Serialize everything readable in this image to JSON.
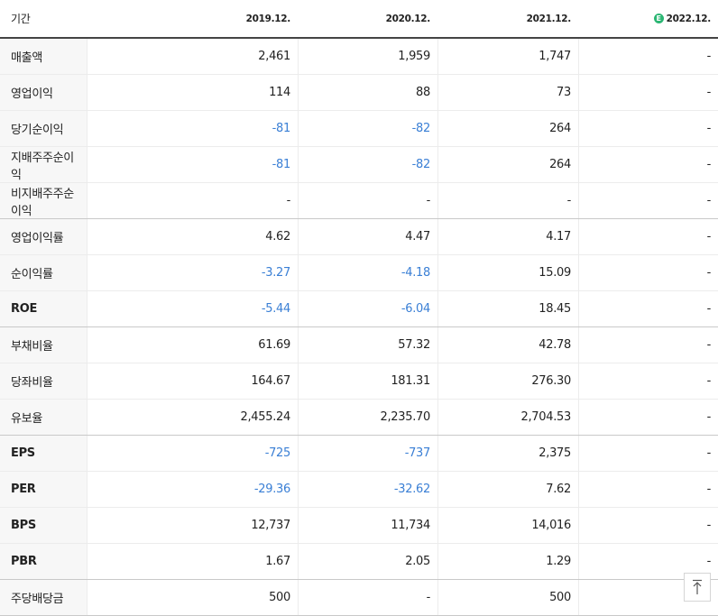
{
  "table": {
    "header": {
      "label": "기간",
      "columns": [
        "2019.12.",
        "2020.12.",
        "2021.12.",
        "2022.12."
      ],
      "estimate_badge": "E"
    },
    "negative_color": "#3a7fd5",
    "groups": [
      {
        "rows": [
          {
            "label": "매출액",
            "cells": [
              "2,461",
              "1,959",
              "1,747",
              "-"
            ]
          },
          {
            "label": "영업이익",
            "cells": [
              "114",
              "88",
              "73",
              "-"
            ]
          },
          {
            "label": "당기순이익",
            "cells": [
              "-81",
              "-82",
              "264",
              "-"
            ]
          },
          {
            "label": "지배주주순이익",
            "cells": [
              "-81",
              "-82",
              "264",
              "-"
            ]
          },
          {
            "label": "비지배주주순이익",
            "cells": [
              "-",
              "-",
              "-",
              "-"
            ]
          }
        ]
      },
      {
        "rows": [
          {
            "label": "영업이익률",
            "cells": [
              "4.62",
              "4.47",
              "4.17",
              "-"
            ]
          },
          {
            "label": "순이익률",
            "cells": [
              "-3.27",
              "-4.18",
              "15.09",
              "-"
            ]
          },
          {
            "label": "ROE",
            "cells": [
              "-5.44",
              "-6.04",
              "18.45",
              "-"
            ]
          }
        ]
      },
      {
        "rows": [
          {
            "label": "부채비율",
            "cells": [
              "61.69",
              "57.32",
              "42.78",
              "-"
            ]
          },
          {
            "label": "당좌비율",
            "cells": [
              "164.67",
              "181.31",
              "276.30",
              "-"
            ]
          },
          {
            "label": "유보율",
            "cells": [
              "2,455.24",
              "2,235.70",
              "2,704.53",
              "-"
            ]
          }
        ]
      },
      {
        "rows": [
          {
            "label": "EPS",
            "cells": [
              "-725",
              "-737",
              "2,375",
              "-"
            ]
          },
          {
            "label": "PER",
            "cells": [
              "-29.36",
              "-32.62",
              "7.62",
              "-"
            ]
          },
          {
            "label": "BPS",
            "cells": [
              "12,737",
              "11,734",
              "14,016",
              "-"
            ]
          },
          {
            "label": "PBR",
            "cells": [
              "1.67",
              "2.05",
              "1.29",
              "-"
            ]
          }
        ]
      },
      {
        "rows": [
          {
            "label": "주당배당금",
            "cells": [
              "500",
              "-",
              "500",
              "-"
            ]
          }
        ]
      }
    ]
  }
}
